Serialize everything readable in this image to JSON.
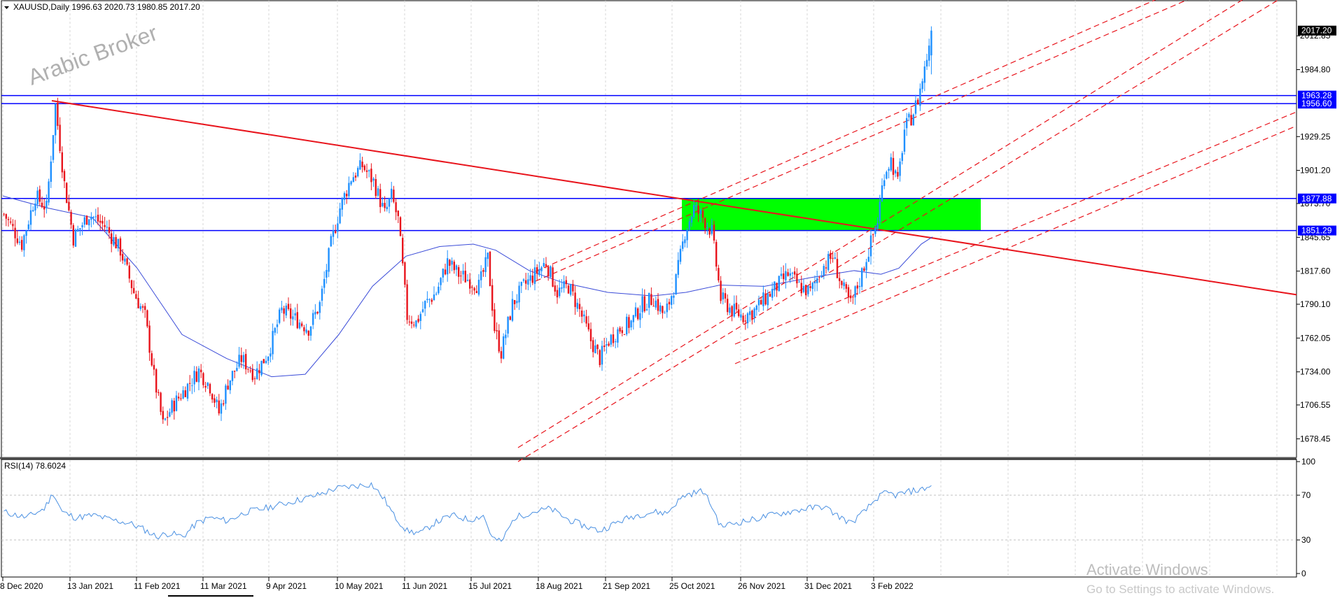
{
  "header": {
    "symbol_line": "XAUUSD,Daily  1996.63 2020.73 1980.85 2017.20",
    "rsi_line": "RSI(14) 78.6024"
  },
  "watermark": "Arabic Broker",
  "windows_notice": {
    "title": "Activate Windows",
    "subtitle": "Go to Settings to activate Windows."
  },
  "colors": {
    "bull": "#1e90ff",
    "bear": "#e8141c",
    "level": "#0000ff",
    "trend": "#e8141c",
    "zone": "#00ff00",
    "ma": "#3a4bd8",
    "rsi": "#4a90e2"
  },
  "chart_data": [
    {
      "type": "candlestick",
      "symbol": "XAUUSD",
      "timeframe": "Daily",
      "ohlc_last": {
        "open": 1996.63,
        "high": 2020.73,
        "low": 1980.85,
        "close": 2017.2
      },
      "ylim": [
        1663,
        2042
      ],
      "y_ticks": [
        "2012.85",
        "1984.80",
        "1929.25",
        "1901.20",
        "1873.70",
        "1845.65",
        "1817.60",
        "1790.10",
        "1762.05",
        "1734.00",
        "1706.55",
        "1678.45"
      ],
      "x_ticks": [
        "8 Dec 2020",
        "13 Jan 2021",
        "11 Feb 2021",
        "11 Mar 2021",
        "9 Apr 2021",
        "10 May 2021",
        "11 Jun 2021",
        "15 Jul 2021",
        "18 Aug 2021",
        "21 Sep 2021",
        "25 Oct 2021",
        "26 Nov 2021",
        "31 Dec 2021",
        "3 Feb 2022"
      ],
      "price_tags": [
        {
          "label": "2017.20",
          "value": 2017.2,
          "style": "current"
        },
        {
          "label": "1963.28",
          "value": 1963.28,
          "style": "level"
        },
        {
          "label": "1956.60",
          "value": 1956.6,
          "style": "level"
        },
        {
          "label": "1877.88",
          "value": 1877.88,
          "style": "level"
        },
        {
          "label": "1851.29",
          "value": 1851.29,
          "style": "level"
        }
      ],
      "horizontal_levels": [
        1963.28,
        1956.6,
        1877.88,
        1851.29
      ],
      "zone": {
        "x_start": "25 Oct 2021",
        "x_end": "22 Feb 2022",
        "y_low": 1851.29,
        "y_high": 1877.88
      },
      "trendline": {
        "from": {
          "x": "5 Jan 2021",
          "y": 1959
        },
        "to": {
          "x": "Jun 2022",
          "y": 1798
        }
      },
      "price_path": [
        [
          0,
          1865
        ],
        [
          8,
          1840
        ],
        [
          14,
          1880
        ],
        [
          19,
          1870
        ],
        [
          23,
          1955
        ],
        [
          27,
          1890
        ],
        [
          31,
          1845
        ],
        [
          38,
          1865
        ],
        [
          45,
          1855
        ],
        [
          52,
          1835
        ],
        [
          58,
          1800
        ],
        [
          63,
          1780
        ],
        [
          67,
          1730
        ],
        [
          71,
          1690
        ],
        [
          75,
          1705
        ],
        [
          81,
          1720
        ],
        [
          87,
          1735
        ],
        [
          92,
          1722
        ],
        [
          96,
          1700
        ],
        [
          100,
          1725
        ],
        [
          106,
          1745
        ],
        [
          112,
          1732
        ],
        [
          118,
          1750
        ],
        [
          124,
          1785
        ],
        [
          130,
          1778
        ],
        [
          136,
          1770
        ],
        [
          141,
          1790
        ],
        [
          146,
          1840
        ],
        [
          150,
          1870
        ],
        [
          155,
          1895
        ],
        [
          160,
          1905
        ],
        [
          165,
          1892
        ],
        [
          170,
          1865
        ],
        [
          173,
          1880
        ],
        [
          176,
          1860
        ],
        [
          180,
          1780
        ],
        [
          184,
          1775
        ],
        [
          188,
          1790
        ],
        [
          193,
          1800
        ],
        [
          198,
          1825
        ],
        [
          203,
          1815
        ],
        [
          208,
          1810
        ],
        [
          212,
          1805
        ],
        [
          216,
          1828
        ],
        [
          219,
          1770
        ],
        [
          222,
          1750
        ],
        [
          227,
          1790
        ],
        [
          232,
          1805
        ],
        [
          237,
          1815
        ],
        [
          242,
          1825
        ],
        [
          247,
          1800
        ],
        [
          252,
          1805
        ],
        [
          257,
          1785
        ],
        [
          262,
          1760
        ],
        [
          266,
          1745
        ],
        [
          270,
          1760
        ],
        [
          275,
          1770
        ],
        [
          280,
          1775
        ],
        [
          285,
          1790
        ],
        [
          290,
          1795
        ],
        [
          295,
          1780
        ],
        [
          300,
          1810
        ],
        [
          304,
          1850
        ],
        [
          308,
          1870
        ],
        [
          312,
          1862
        ],
        [
          316,
          1850
        ],
        [
          320,
          1795
        ],
        [
          325,
          1785
        ],
        [
          330,
          1780
        ],
        [
          335,
          1785
        ],
        [
          340,
          1795
        ],
        [
          345,
          1805
        ],
        [
          350,
          1815
        ],
        [
          355,
          1805
        ],
        [
          360,
          1800
        ],
        [
          365,
          1820
        ],
        [
          370,
          1830
        ],
        [
          374,
          1805
        ],
        [
          378,
          1790
        ],
        [
          382,
          1810
        ],
        [
          386,
          1835
        ],
        [
          390,
          1860
        ],
        [
          393,
          1900
        ],
        [
          396,
          1910
        ],
        [
          399,
          1890
        ],
        [
          402,
          1935
        ],
        [
          405,
          1945
        ],
        [
          408,
          1960
        ],
        [
          411,
          1985
        ],
        [
          414,
          2017
        ]
      ],
      "ma_path": [
        [
          0,
          1880
        ],
        [
          20,
          1870
        ],
        [
          40,
          1862
        ],
        [
          60,
          1820
        ],
        [
          80,
          1765
        ],
        [
          100,
          1745
        ],
        [
          120,
          1730
        ],
        [
          135,
          1732
        ],
        [
          150,
          1765
        ],
        [
          165,
          1805
        ],
        [
          180,
          1830
        ],
        [
          195,
          1838
        ],
        [
          210,
          1840
        ],
        [
          220,
          1835
        ],
        [
          235,
          1818
        ],
        [
          250,
          1808
        ],
        [
          270,
          1800
        ],
        [
          290,
          1797
        ],
        [
          305,
          1800
        ],
        [
          320,
          1806
        ],
        [
          340,
          1805
        ],
        [
          360,
          1812
        ],
        [
          380,
          1818
        ],
        [
          392,
          1815
        ],
        [
          400,
          1820
        ],
        [
          410,
          1840
        ],
        [
          415,
          1846
        ]
      ]
    },
    {
      "type": "line",
      "indicator": "RSI(14)",
      "last_value": 78.6024,
      "ylim": [
        0,
        100
      ],
      "y_ticks": [
        "100",
        "70",
        "30",
        "0"
      ],
      "path": [
        [
          0,
          55
        ],
        [
          10,
          50
        ],
        [
          18,
          58
        ],
        [
          22,
          72
        ],
        [
          26,
          55
        ],
        [
          32,
          50
        ],
        [
          40,
          52
        ],
        [
          48,
          48
        ],
        [
          56,
          45
        ],
        [
          62,
          40
        ],
        [
          68,
          33
        ],
        [
          74,
          36
        ],
        [
          80,
          33
        ],
        [
          86,
          45
        ],
        [
          92,
          50
        ],
        [
          100,
          47
        ],
        [
          108,
          55
        ],
        [
          116,
          58
        ],
        [
          124,
          62
        ],
        [
          132,
          66
        ],
        [
          140,
          70
        ],
        [
          148,
          76
        ],
        [
          156,
          78
        ],
        [
          164,
          80
        ],
        [
          170,
          66
        ],
        [
          174,
          52
        ],
        [
          180,
          38
        ],
        [
          186,
          36
        ],
        [
          192,
          45
        ],
        [
          200,
          52
        ],
        [
          208,
          48
        ],
        [
          214,
          52
        ],
        [
          218,
          32
        ],
        [
          222,
          28
        ],
        [
          228,
          50
        ],
        [
          236,
          55
        ],
        [
          244,
          58
        ],
        [
          252,
          48
        ],
        [
          260,
          42
        ],
        [
          266,
          38
        ],
        [
          274,
          46
        ],
        [
          282,
          52
        ],
        [
          290,
          55
        ],
        [
          296,
          54
        ],
        [
          300,
          63
        ],
        [
          304,
          70
        ],
        [
          308,
          72
        ],
        [
          312,
          74
        ],
        [
          316,
          60
        ],
        [
          320,
          42
        ],
        [
          326,
          45
        ],
        [
          334,
          48
        ],
        [
          342,
          52
        ],
        [
          350,
          55
        ],
        [
          358,
          58
        ],
        [
          366,
          60
        ],
        [
          372,
          52
        ],
        [
          378,
          45
        ],
        [
          384,
          55
        ],
        [
          390,
          68
        ],
        [
          394,
          72
        ],
        [
          398,
          70
        ],
        [
          402,
          72
        ],
        [
          406,
          74
        ],
        [
          410,
          75
        ],
        [
          414,
          79
        ]
      ]
    }
  ]
}
